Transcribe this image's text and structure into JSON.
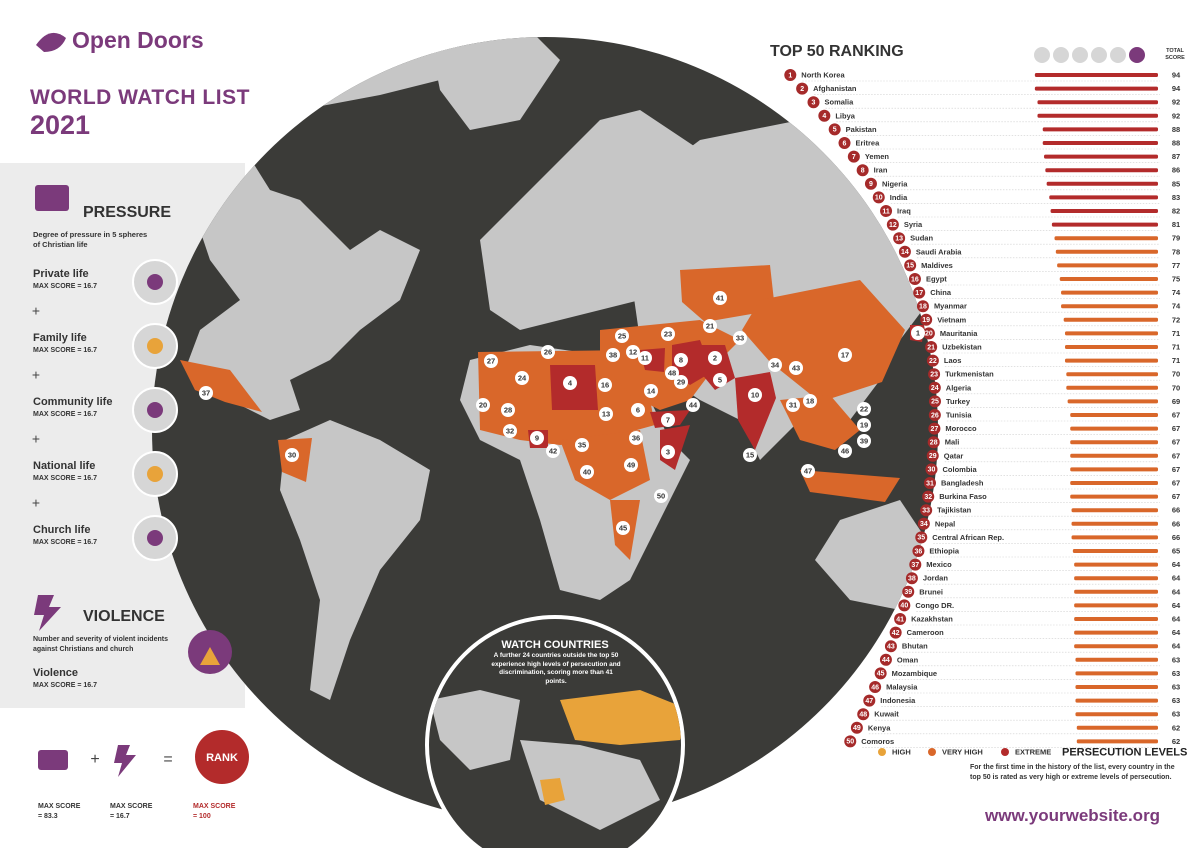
{
  "header": {
    "logo": "Open Doors",
    "title": "WORLD WATCH LIST",
    "year": "2021"
  },
  "pressure": {
    "title": "PRESSURE",
    "description": "Degree of pressure in 5 spheres of Christian life",
    "spheres": [
      {
        "name": "Private life",
        "max": "MAX SCORE = 16.7"
      },
      {
        "name": "Family life",
        "max": "MAX SCORE = 16.7"
      },
      {
        "name": "Community life",
        "max": "MAX SCORE = 16.7"
      },
      {
        "name": "National life",
        "max": "MAX SCORE = 16.7"
      },
      {
        "name": "Church life",
        "max": "MAX SCORE = 16.7"
      }
    ]
  },
  "violence": {
    "title": "VIOLENCE",
    "description": "Number and severity of violent incidents against Christians and church",
    "name": "Violence",
    "max": "MAX SCORE = 16.7"
  },
  "formula": {
    "rank": "RANK",
    "pressure_max": "MAX SCORE = 83.3",
    "violence_max": "MAX SCORE = 16.7",
    "rank_max": "MAX SCORE = 100"
  },
  "watch": {
    "title": "WATCH COUNTRIES",
    "description": "A further 24 countries outside the top 50 experience high levels of persecution and discrimination, scoring more than 41 points."
  },
  "ranking": {
    "title": "TOP 50 RANKING",
    "score_header": "TOTAL SCORE",
    "rows": [
      {
        "rank": 1,
        "country": "North Korea",
        "score": 94,
        "color": "#b32b2b"
      },
      {
        "rank": 2,
        "country": "Afghanistan",
        "score": 94,
        "color": "#b32b2b"
      },
      {
        "rank": 3,
        "country": "Somalia",
        "score": 92,
        "color": "#b32b2b"
      },
      {
        "rank": 4,
        "country": "Libya",
        "score": 92,
        "color": "#b32b2b"
      },
      {
        "rank": 5,
        "country": "Pakistan",
        "score": 88,
        "color": "#b32b2b"
      },
      {
        "rank": 6,
        "country": "Eritrea",
        "score": 88,
        "color": "#b32b2b"
      },
      {
        "rank": 7,
        "country": "Yemen",
        "score": 87,
        "color": "#b32b2b"
      },
      {
        "rank": 8,
        "country": "Iran",
        "score": 86,
        "color": "#b32b2b"
      },
      {
        "rank": 9,
        "country": "Nigeria",
        "score": 85,
        "color": "#b32b2b"
      },
      {
        "rank": 10,
        "country": "India",
        "score": 83,
        "color": "#b32b2b"
      },
      {
        "rank": 11,
        "country": "Iraq",
        "score": 82,
        "color": "#b32b2b"
      },
      {
        "rank": 12,
        "country": "Syria",
        "score": 81,
        "color": "#b32b2b"
      },
      {
        "rank": 13,
        "country": "Sudan",
        "score": 79,
        "color": "#d9672a"
      },
      {
        "rank": 14,
        "country": "Saudi Arabia",
        "score": 78,
        "color": "#d9672a"
      },
      {
        "rank": 15,
        "country": "Maldives",
        "score": 77,
        "color": "#d9672a"
      },
      {
        "rank": 16,
        "country": "Egypt",
        "score": 75,
        "color": "#d9672a"
      },
      {
        "rank": 17,
        "country": "China",
        "score": 74,
        "color": "#d9672a"
      },
      {
        "rank": 18,
        "country": "Myanmar",
        "score": 74,
        "color": "#d9672a"
      },
      {
        "rank": 19,
        "country": "Vietnam",
        "score": 72,
        "color": "#d9672a"
      },
      {
        "rank": 20,
        "country": "Mauritania",
        "score": 71,
        "color": "#d9672a"
      },
      {
        "rank": 21,
        "country": "Uzbekistan",
        "score": 71,
        "color": "#d9672a"
      },
      {
        "rank": 22,
        "country": "Laos",
        "score": 71,
        "color": "#d9672a"
      },
      {
        "rank": 23,
        "country": "Turkmenistan",
        "score": 70,
        "color": "#d9672a"
      },
      {
        "rank": 24,
        "country": "Algeria",
        "score": 70,
        "color": "#d9672a"
      },
      {
        "rank": 25,
        "country": "Turkey",
        "score": 69,
        "color": "#d9672a"
      },
      {
        "rank": 26,
        "country": "Tunisia",
        "score": 67,
        "color": "#d9672a"
      },
      {
        "rank": 27,
        "country": "Morocco",
        "score": 67,
        "color": "#d9672a"
      },
      {
        "rank": 28,
        "country": "Mali",
        "score": 67,
        "color": "#d9672a"
      },
      {
        "rank": 29,
        "country": "Qatar",
        "score": 67,
        "color": "#d9672a"
      },
      {
        "rank": 30,
        "country": "Colombia",
        "score": 67,
        "color": "#d9672a"
      },
      {
        "rank": 31,
        "country": "Bangladesh",
        "score": 67,
        "color": "#d9672a"
      },
      {
        "rank": 32,
        "country": "Burkina Faso",
        "score": 67,
        "color": "#d9672a"
      },
      {
        "rank": 33,
        "country": "Tajikistan",
        "score": 66,
        "color": "#d9672a"
      },
      {
        "rank": 34,
        "country": "Nepal",
        "score": 66,
        "color": "#d9672a"
      },
      {
        "rank": 35,
        "country": "Central African Rep.",
        "score": 66,
        "color": "#d9672a"
      },
      {
        "rank": 36,
        "country": "Ethiopia",
        "score": 65,
        "color": "#d9672a"
      },
      {
        "rank": 37,
        "country": "Mexico",
        "score": 64,
        "color": "#d9672a"
      },
      {
        "rank": 38,
        "country": "Jordan",
        "score": 64,
        "color": "#d9672a"
      },
      {
        "rank": 39,
        "country": "Brunei",
        "score": 64,
        "color": "#d9672a"
      },
      {
        "rank": 40,
        "country": "Congo DR.",
        "score": 64,
        "color": "#d9672a"
      },
      {
        "rank": 41,
        "country": "Kazakhstan",
        "score": 64,
        "color": "#d9672a"
      },
      {
        "rank": 42,
        "country": "Cameroon",
        "score": 64,
        "color": "#d9672a"
      },
      {
        "rank": 43,
        "country": "Bhutan",
        "score": 64,
        "color": "#d9672a"
      },
      {
        "rank": 44,
        "country": "Oman",
        "score": 63,
        "color": "#d9672a"
      },
      {
        "rank": 45,
        "country": "Mozambique",
        "score": 63,
        "color": "#d9672a"
      },
      {
        "rank": 46,
        "country": "Malaysia",
        "score": 63,
        "color": "#d9672a"
      },
      {
        "rank": 47,
        "country": "Indonesia",
        "score": 63,
        "color": "#d9672a"
      },
      {
        "rank": 48,
        "country": "Kuwait",
        "score": 63,
        "color": "#d9672a"
      },
      {
        "rank": 49,
        "country": "Kenya",
        "score": 62,
        "color": "#d9672a"
      },
      {
        "rank": 50,
        "country": "Comoros",
        "score": 62,
        "color": "#d9672a"
      }
    ]
  },
  "legend": {
    "title": "PERSECUTION LEVELS",
    "levels": [
      {
        "label": "HIGH",
        "color": "#e8a33a"
      },
      {
        "label": "VERY HIGH",
        "color": "#d9672a"
      },
      {
        "label": "EXTREME",
        "color": "#b32b2b"
      }
    ],
    "note": "For the first time in the history of the list, every country in the top 50 is rated as very high or extreme levels of persecution."
  },
  "footer": {
    "website": "www.yourwebsite.org"
  }
}
